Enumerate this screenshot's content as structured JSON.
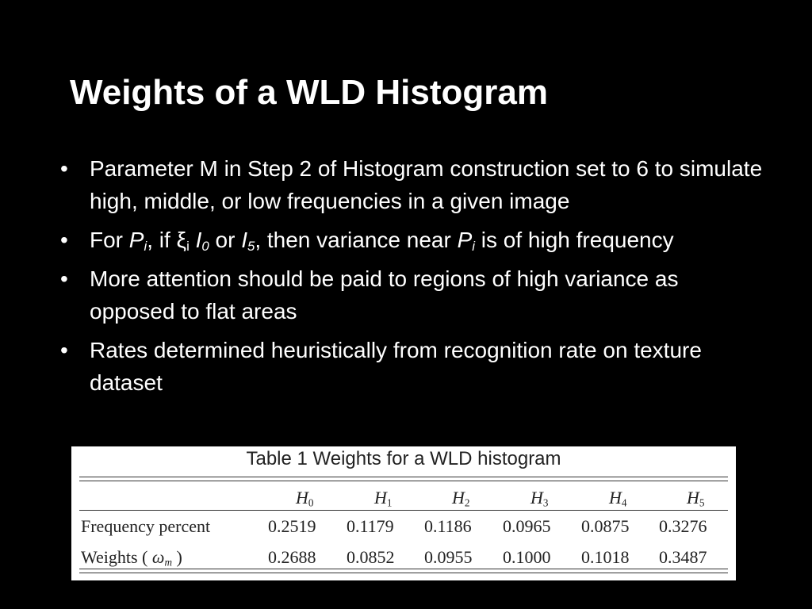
{
  "title": "Weights of a WLD Histogram",
  "bullets": [
    "Parameter M in Step 2 of Histogram construction set to 6 to simulate high, middle, or low frequencies in a given image",
    [
      "For ",
      "P",
      "i",
      ", if ξ",
      "i",
      " ",
      "I",
      "0",
      " or ",
      "I",
      "5",
      ", then variance near ",
      "P",
      "i",
      " is of high frequency"
    ],
    "More attention should be paid to regions of high variance as opposed to flat areas",
    "Rates determined heuristically from recognition rate on texture dataset"
  ],
  "table": {
    "caption": "Table 1 Weights for a WLD histogram",
    "columns": [
      [
        "H",
        "0"
      ],
      [
        "H",
        "1"
      ],
      [
        "H",
        "2"
      ],
      [
        "H",
        "3"
      ],
      [
        "H",
        "4"
      ],
      [
        "H",
        "5"
      ]
    ],
    "rows": [
      {
        "label": [
          "Frequency percent"
        ],
        "values": [
          "0.2519",
          "0.1179",
          "0.1186",
          "0.0965",
          "0.0875",
          "0.3276"
        ]
      },
      {
        "label": [
          "Weights ( ",
          "ω",
          "m",
          " )"
        ],
        "values": [
          "0.2688",
          "0.0852",
          "0.0955",
          "0.1000",
          "0.1018",
          "0.3487"
        ]
      }
    ]
  }
}
